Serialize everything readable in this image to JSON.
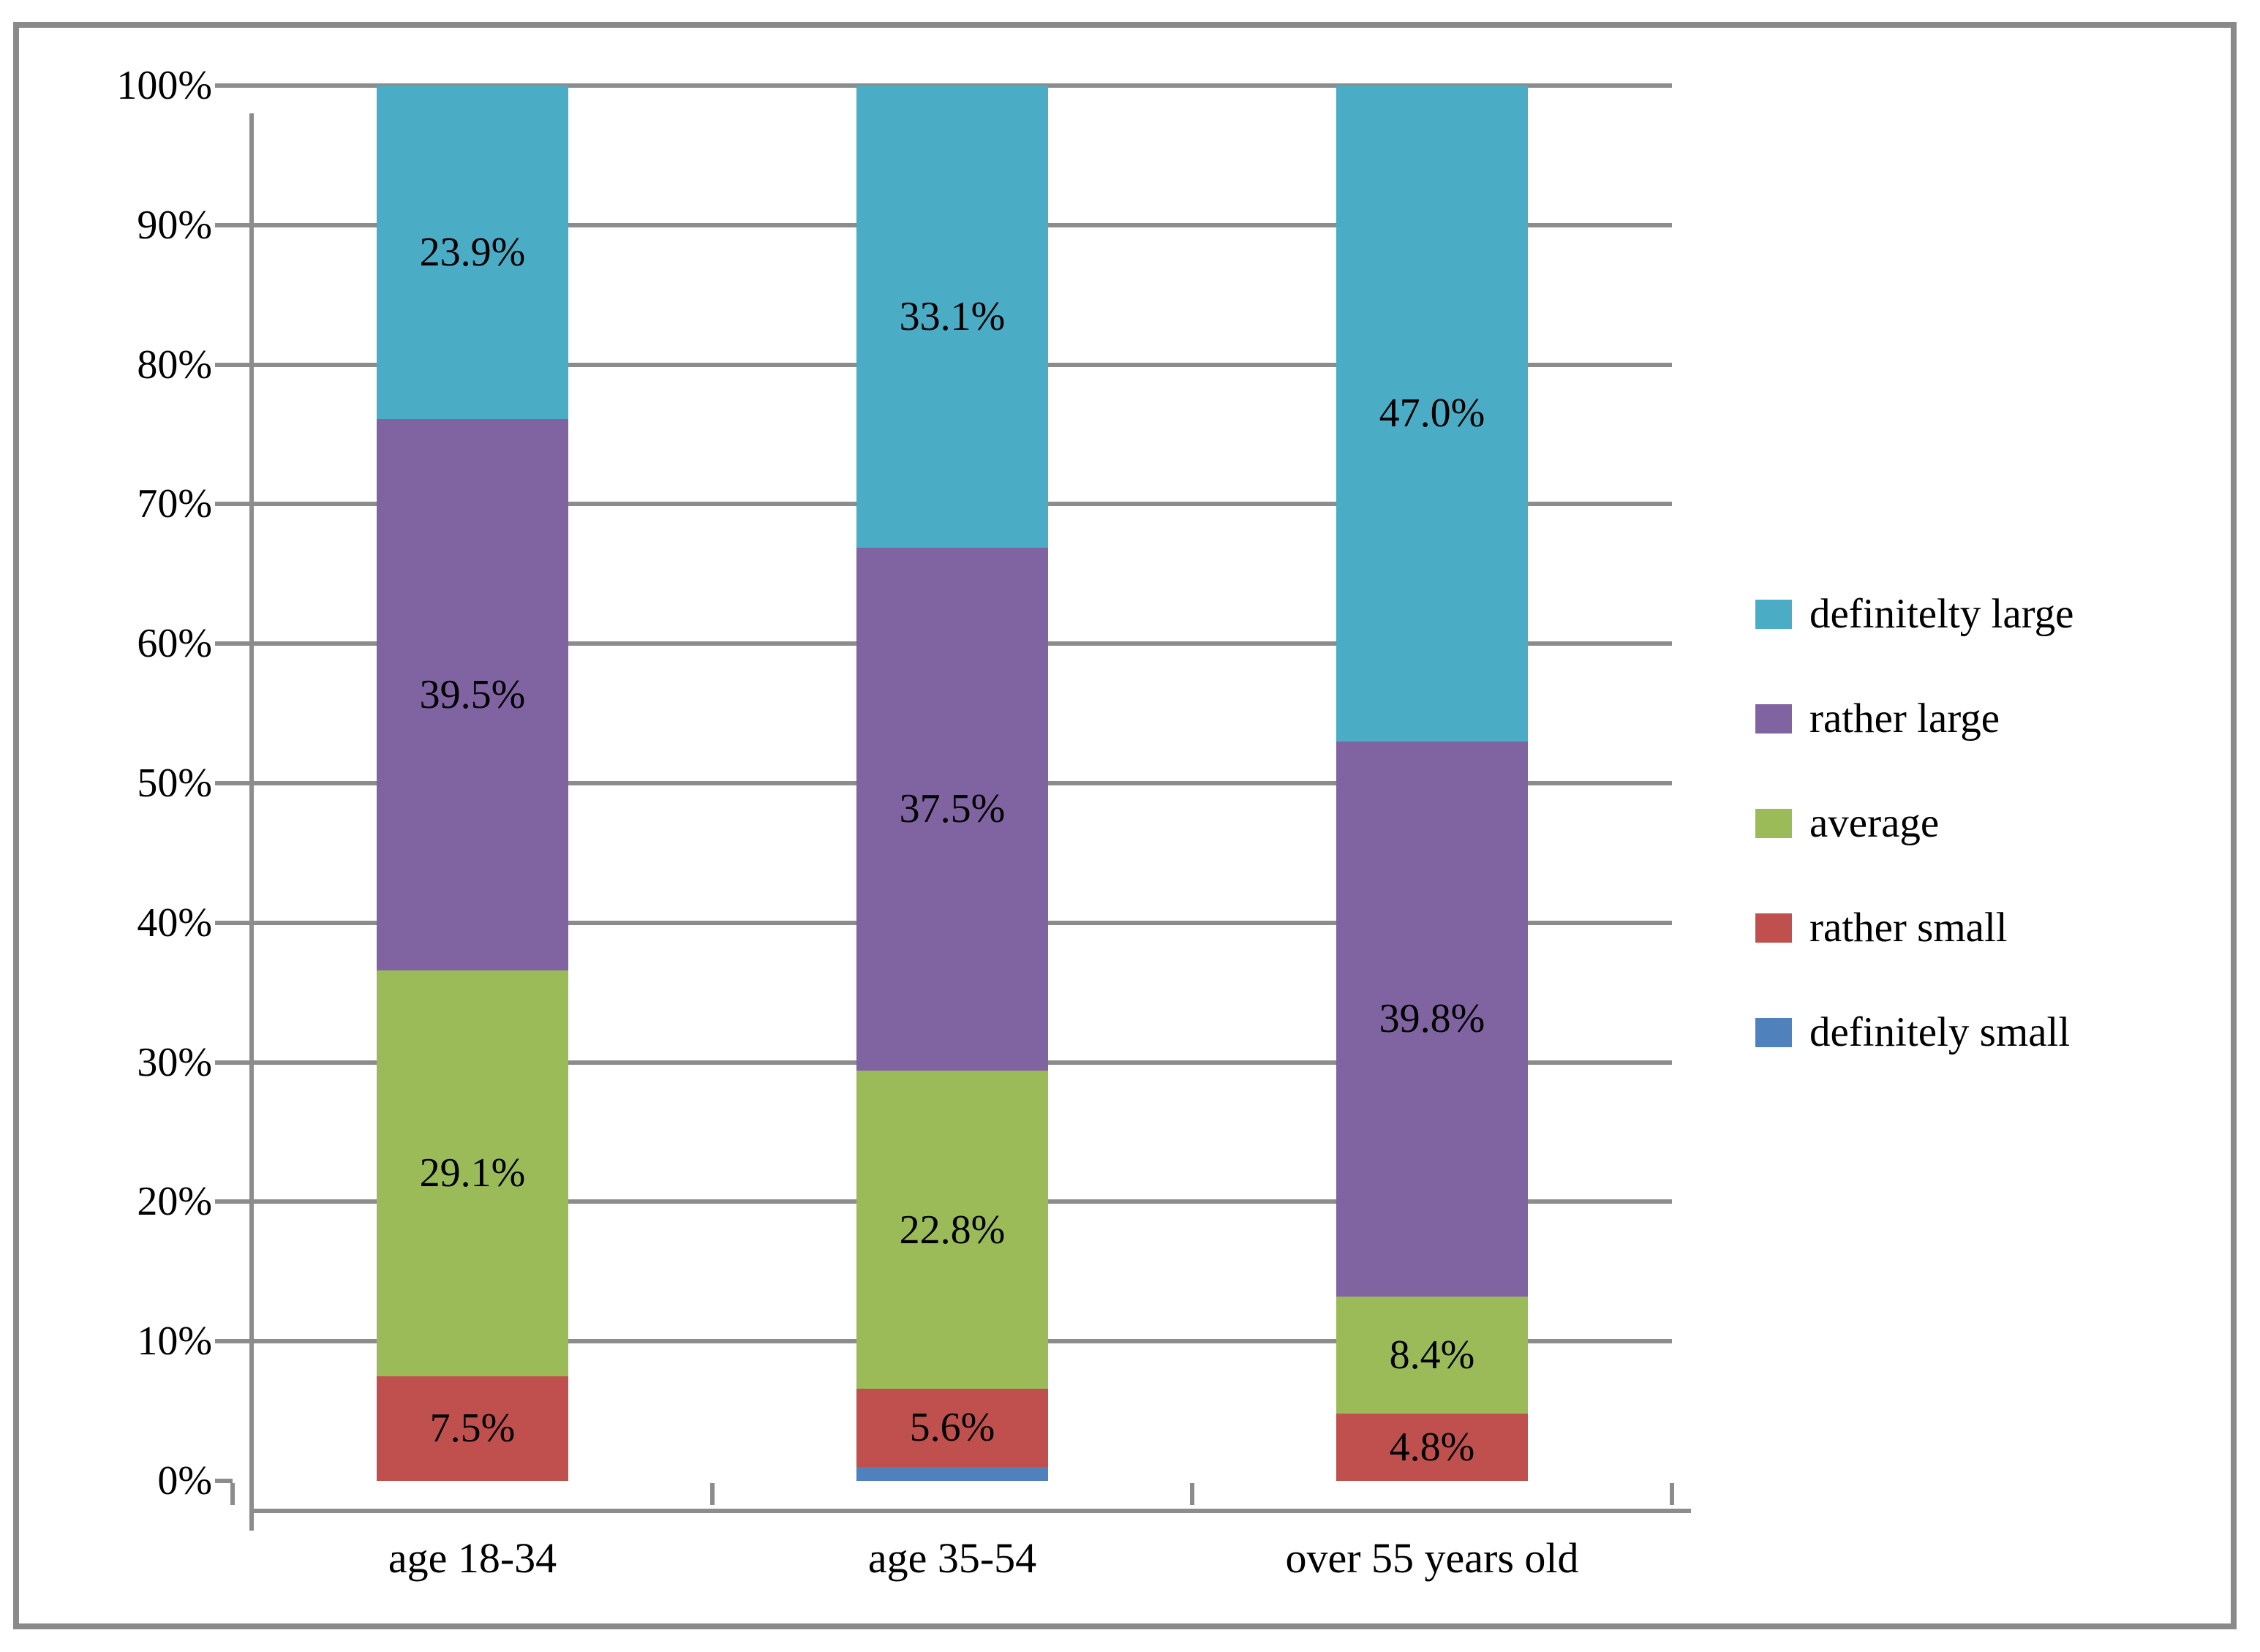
{
  "chart_data": {
    "type": "bar",
    "stacked": true,
    "orientation": "vertical",
    "title": "",
    "xlabel": "",
    "ylabel": "",
    "categories": [
      "age 18-34",
      "age 35-54",
      "over 55 years old"
    ],
    "series": [
      {
        "name": "definitely small",
        "color": "#4F81BD",
        "values": [
          0,
          1.0,
          0
        ],
        "labels": [
          "",
          "",
          ""
        ]
      },
      {
        "name": "rather small",
        "color": "#C0504D",
        "values": [
          7.5,
          5.6,
          4.8
        ],
        "labels": [
          "7.5%",
          "5.6%",
          "4.8%"
        ]
      },
      {
        "name": "average",
        "color": "#9BBB59",
        "values": [
          29.1,
          22.8,
          8.4
        ],
        "labels": [
          "29.1%",
          "22.8%",
          "8.4%"
        ]
      },
      {
        "name": "rather large",
        "color": "#8064A2",
        "values": [
          39.5,
          37.5,
          39.8
        ],
        "labels": [
          "39.5%",
          "37.5%",
          "39.8%"
        ]
      },
      {
        "name": "definitelty large",
        "color": "#4BACC6",
        "values": [
          23.9,
          33.1,
          47.0
        ],
        "labels": [
          "23.9%",
          "33.1%",
          "47.0%"
        ]
      }
    ],
    "legend": {
      "position": "right",
      "items_top_to_bottom": [
        {
          "label": "definitelty large",
          "color": "#4BACC6"
        },
        {
          "label": "rather large",
          "color": "#8064A2"
        },
        {
          "label": "average",
          "color": "#9BBB59"
        },
        {
          "label": "rather small",
          "color": "#C0504D"
        },
        {
          "label": "definitely small",
          "color": "#4F81BD"
        }
      ]
    },
    "y_axis": {
      "min": 0,
      "max": 100,
      "tick_step": 10,
      "tick_labels": [
        "0%",
        "10%",
        "20%",
        "30%",
        "40%",
        "50%",
        "60%",
        "70%",
        "80%",
        "90%",
        "100%"
      ]
    },
    "grid": true,
    "colors": {
      "gridline": "#8C8C8C",
      "axis": "#8C8C8C",
      "frame_border": "#8A8A8A",
      "background": "#FFFFFF",
      "label_text": "#000000"
    }
  }
}
